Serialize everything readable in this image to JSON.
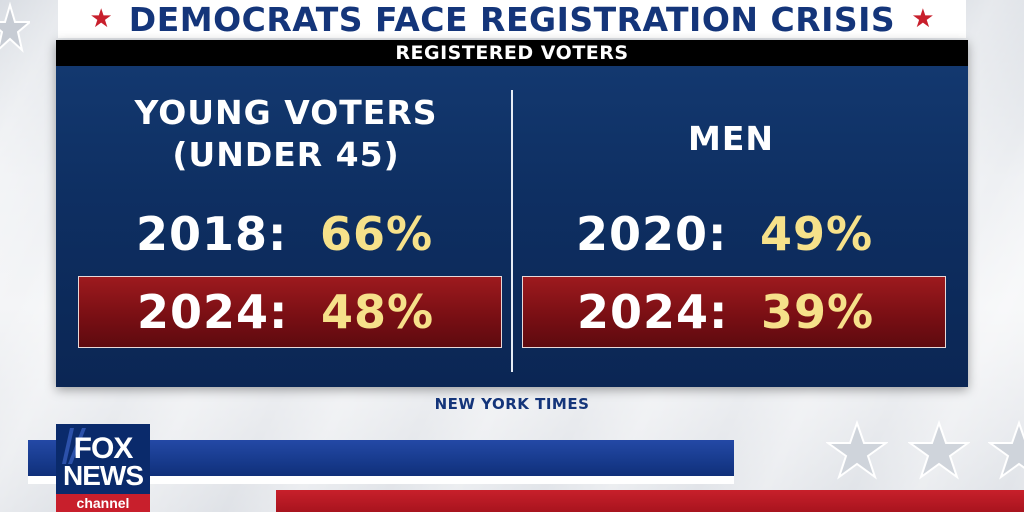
{
  "headline": {
    "text": "DEMOCRATS FACE REGISTRATION CRISIS",
    "star_glyph": "★",
    "star_color": "#c81f2c",
    "text_color": "#14357a"
  },
  "subhead": {
    "text": "REGISTERED VOTERS"
  },
  "columns": [
    {
      "title_line1": "YOUNG VOTERS",
      "title_line2": "(UNDER 45)",
      "rows": [
        {
          "year": "2018:",
          "value": "66%",
          "highlight": false
        },
        {
          "year": "2024:",
          "value": "48%",
          "highlight": true
        }
      ]
    },
    {
      "title_line1": "MEN",
      "title_line2": "",
      "rows": [
        {
          "year": "2020:",
          "value": "49%",
          "highlight": false
        },
        {
          "year": "2024:",
          "value": "39%",
          "highlight": true
        }
      ]
    }
  ],
  "source": {
    "text": "NEW YORK TIMES"
  },
  "logo": {
    "line1": "FOX",
    "line2": "NEWS",
    "line3": "channel"
  },
  "colors": {
    "panel_blue": "#0e2f62",
    "highlight_red": "#7a0f14",
    "value_yellow": "#f6e18a",
    "band_blue": "#173a8c",
    "band_red": "#c8202b"
  },
  "icons": [
    "star-icon",
    "fox-news-logo"
  ]
}
